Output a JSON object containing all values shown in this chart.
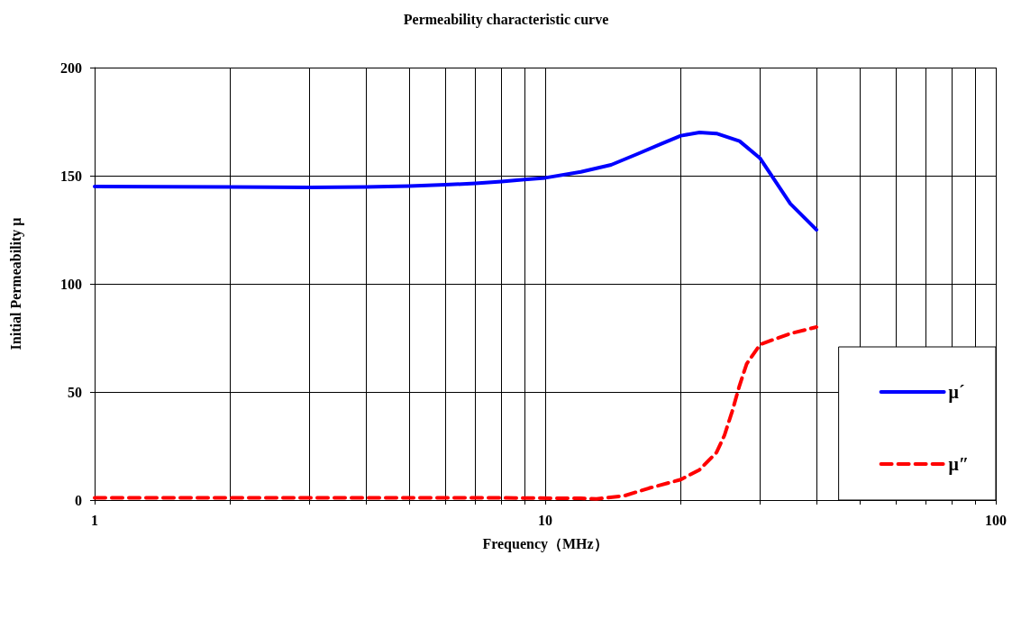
{
  "chart_data": {
    "type": "line",
    "title": "Permeability characteristic curve",
    "xlabel": "Frequency（MHz）",
    "ylabel": "Initial Permeability μ",
    "log": "x",
    "grid": true,
    "legend": "bottom right",
    "marker": "none",
    "xlim": [
      1,
      100
    ],
    "xticks": [
      1,
      {
        "value": 2,
        "label": null
      },
      {
        "value": 3,
        "label": null
      },
      {
        "value": 4,
        "label": null
      },
      {
        "value": 5,
        "label": null
      },
      {
        "value": 6,
        "label": null
      },
      {
        "value": 7,
        "label": null
      },
      {
        "value": 8,
        "label": null
      },
      {
        "value": 9,
        "label": null
      },
      10,
      {
        "value": 20,
        "label": null
      },
      {
        "value": 30,
        "label": null
      },
      {
        "value": 40,
        "label": null
      },
      {
        "value": 50,
        "label": null
      },
      {
        "value": 60,
        "label": null
      },
      {
        "value": 70,
        "label": null
      },
      {
        "value": 80,
        "label": null
      },
      {
        "value": 90,
        "label": null
      },
      100
    ],
    "ylim": [
      0,
      200
    ],
    "yticks": [
      0,
      50,
      100,
      150,
      200
    ],
    "series": [
      {
        "name": "μ´",
        "color": "#0000ff",
        "line_style": "solid",
        "x": [
          1,
          2,
          3,
          4,
          5,
          6,
          7,
          8,
          9,
          10,
          12,
          14,
          16,
          18,
          20,
          22,
          24,
          27,
          30,
          35,
          40
        ],
        "values": [
          145,
          144.8,
          144.6,
          144.8,
          145.2,
          145.8,
          146.5,
          147.3,
          148.2,
          149,
          151.8,
          155,
          160,
          164.5,
          168.5,
          170,
          169.5,
          166,
          158,
          137,
          125
        ]
      },
      {
        "name": "μ″",
        "color": "#ff0000",
        "line_style": "dashed",
        "x": [
          1,
          2,
          4,
          8,
          12,
          13,
          15,
          17,
          20,
          22,
          24,
          25,
          26,
          27,
          28,
          30,
          35,
          40
        ],
        "values": [
          1,
          1,
          1,
          1,
          0.8,
          0.5,
          2,
          5.5,
          9.5,
          14,
          22,
          30,
          41,
          53,
          63,
          72,
          77,
          80
        ]
      }
    ]
  }
}
